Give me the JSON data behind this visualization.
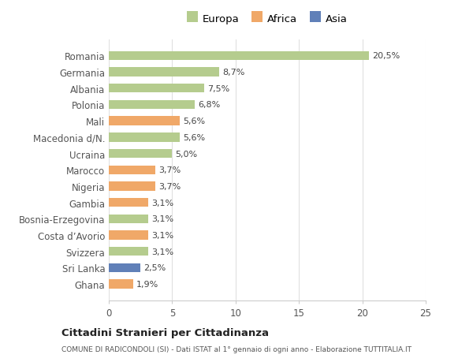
{
  "categories": [
    "Romania",
    "Germania",
    "Albania",
    "Polonia",
    "Mali",
    "Macedonia d/N.",
    "Ucraina",
    "Marocco",
    "Nigeria",
    "Gambia",
    "Bosnia-Erzegovina",
    "Costa d’Avorio",
    "Svizzera",
    "Sri Lanka",
    "Ghana"
  ],
  "values": [
    20.5,
    8.7,
    7.5,
    6.8,
    5.6,
    5.6,
    5.0,
    3.7,
    3.7,
    3.1,
    3.1,
    3.1,
    3.1,
    2.5,
    1.9
  ],
  "labels": [
    "20,5%",
    "8,7%",
    "7,5%",
    "6,8%",
    "5,6%",
    "5,6%",
    "5,0%",
    "3,7%",
    "3,7%",
    "3,1%",
    "3,1%",
    "3,1%",
    "3,1%",
    "2,5%",
    "1,9%"
  ],
  "continents": [
    "Europa",
    "Europa",
    "Europa",
    "Europa",
    "Africa",
    "Europa",
    "Europa",
    "Africa",
    "Africa",
    "Africa",
    "Europa",
    "Africa",
    "Europa",
    "Asia",
    "Africa"
  ],
  "colors": {
    "Europa": "#b5cc8e",
    "Africa": "#f0a868",
    "Asia": "#6080b8"
  },
  "xlim": [
    0,
    25
  ],
  "xticks": [
    0,
    5,
    10,
    15,
    20,
    25
  ],
  "title": "Cittadini Stranieri per Cittadinanza",
  "subtitle": "COMUNE DI RADICONDOLI (SI) - Dati ISTAT al 1° gennaio di ogni anno - Elaborazione TUTTITALIA.IT",
  "background_color": "#ffffff",
  "plot_bg_color": "#ffffff",
  "grid_color": "#e0e0e0",
  "bar_height": 0.55
}
